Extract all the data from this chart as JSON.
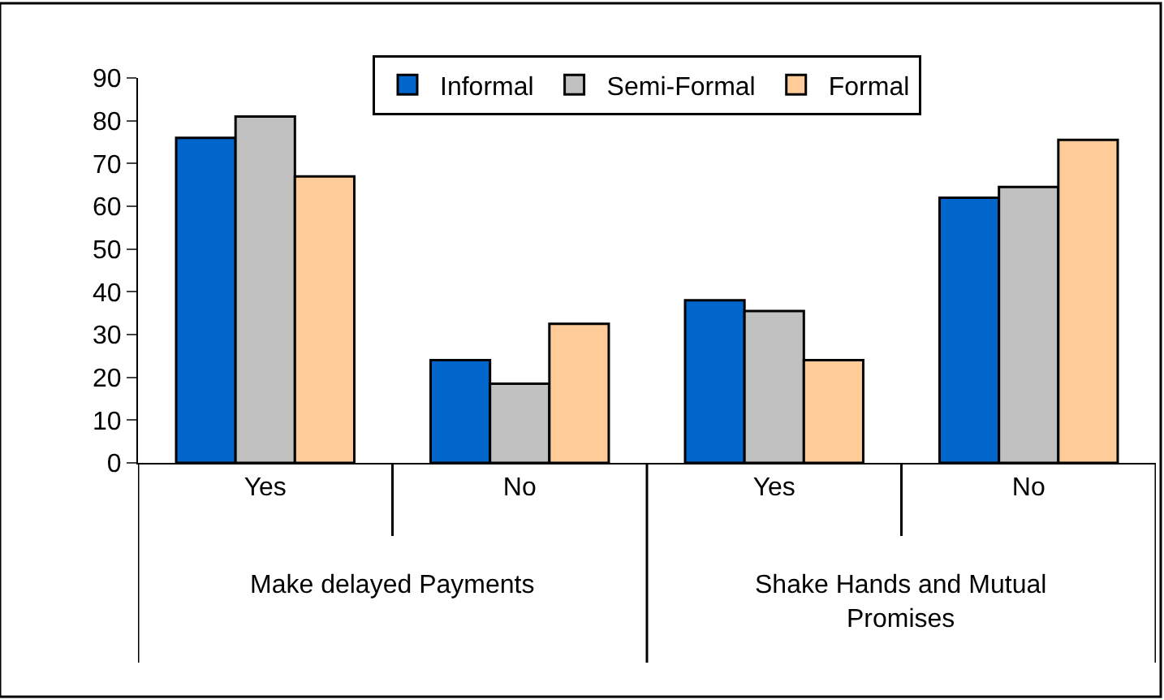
{
  "chart_data": {
    "type": "bar",
    "categories": [
      "Yes",
      "No",
      "Yes",
      "No"
    ],
    "series": [
      {
        "name": "Informal",
        "color": "#0066cc",
        "values": [
          76,
          24,
          38,
          62
        ]
      },
      {
        "name": "Semi-Formal",
        "color": "#c0c0c0",
        "values": [
          81,
          18.5,
          35.5,
          64.5
        ]
      },
      {
        "name": "Formal",
        "color": "#ffcc99",
        "values": [
          67,
          32.5,
          24,
          75.5
        ]
      }
    ],
    "ylim": [
      0,
      90
    ],
    "yticks": [
      0,
      10,
      20,
      30,
      40,
      50,
      60,
      70,
      80,
      90
    ],
    "legend": "top",
    "annotations": [
      "Make delayed Payments",
      "Shake Hands and Mutual Promises"
    ]
  }
}
